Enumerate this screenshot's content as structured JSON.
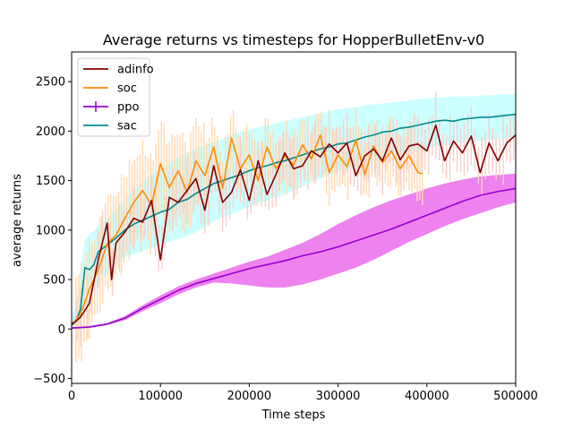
{
  "chart_data": {
    "type": "line",
    "title": "Average returns vs timesteps for HopperBulletEnv-v0",
    "xlabel": "Time steps",
    "ylabel": "average returns",
    "xlim": [
      0,
      500000
    ],
    "ylim": [
      -550,
      2800
    ],
    "xticks": [
      0,
      100000,
      200000,
      300000,
      400000,
      500000
    ],
    "xtick_labels": [
      "0",
      "100000",
      "200000",
      "300000",
      "400000",
      "500000"
    ],
    "yticks": [
      -500,
      0,
      500,
      1000,
      1500,
      2000,
      2500
    ],
    "ytick_labels": [
      "−500",
      "0",
      "500",
      "1000",
      "1500",
      "2000",
      "2500"
    ],
    "grid": false,
    "legend_position": "top-left",
    "series": [
      {
        "name": "adinfo",
        "color": "#800000",
        "x": [
          0,
          10000,
          20000,
          30000,
          40000,
          45000,
          50000,
          60000,
          70000,
          80000,
          90000,
          100000,
          110000,
          120000,
          130000,
          140000,
          150000,
          160000,
          170000,
          180000,
          190000,
          200000,
          210000,
          220000,
          230000,
          240000,
          250000,
          260000,
          270000,
          280000,
          290000,
          300000,
          310000,
          320000,
          330000,
          340000,
          350000,
          360000,
          370000,
          380000,
          390000,
          400000,
          410000,
          420000,
          430000,
          440000,
          450000,
          460000,
          470000,
          480000,
          490000,
          500000
        ],
        "values": [
          40,
          120,
          260,
          700,
          1070,
          500,
          870,
          980,
          1120,
          1080,
          1300,
          700,
          1330,
          1280,
          1400,
          1520,
          1200,
          1650,
          1280,
          1380,
          1610,
          1300,
          1700,
          1360,
          1560,
          1780,
          1620,
          1650,
          1800,
          1740,
          1870,
          1780,
          1880,
          1550,
          1750,
          1820,
          1700,
          1930,
          1710,
          1850,
          1870,
          1800,
          2060,
          1700,
          1900,
          1780,
          1950,
          1580,
          1880,
          1700,
          1880,
          1960
        ]
      },
      {
        "name": "soc",
        "color": "#ff8c00",
        "x": [
          0,
          10000,
          20000,
          30000,
          40000,
          50000,
          60000,
          70000,
          80000,
          90000,
          100000,
          110000,
          120000,
          130000,
          140000,
          150000,
          160000,
          170000,
          180000,
          190000,
          200000,
          210000,
          220000,
          230000,
          240000,
          250000,
          260000,
          270000,
          280000,
          290000,
          300000,
          310000,
          320000,
          330000,
          340000,
          350000,
          360000,
          370000,
          380000,
          390000,
          395000
        ],
        "values": [
          40,
          150,
          400,
          600,
          860,
          950,
          1120,
          1280,
          1400,
          1250,
          1670,
          1430,
          1600,
          1380,
          1700,
          1550,
          1840,
          1420,
          1930,
          1620,
          1760,
          1500,
          1840,
          1620,
          1750,
          1660,
          1860,
          1720,
          1960,
          1580,
          1760,
          1640,
          1910,
          1560,
          1850,
          1680,
          1800,
          1620,
          1750,
          1580,
          1570
        ]
      },
      {
        "name": "ppo",
        "color": "#9400d3",
        "x": [
          0,
          20000,
          40000,
          60000,
          80000,
          100000,
          120000,
          140000,
          160000,
          180000,
          200000,
          220000,
          240000,
          260000,
          280000,
          300000,
          320000,
          340000,
          360000,
          380000,
          400000,
          420000,
          440000,
          460000,
          480000,
          500000
        ],
        "values": [
          10,
          20,
          50,
          110,
          210,
          300,
          390,
          460,
          510,
          560,
          610,
          650,
          690,
          740,
          780,
          830,
          890,
          950,
          1010,
          1080,
          1150,
          1220,
          1290,
          1350,
          1390,
          1420
        ],
        "band_upper": [
          20,
          30,
          60,
          130,
          240,
          340,
          430,
          500,
          560,
          620,
          680,
          730,
          800,
          870,
          960,
          1060,
          1150,
          1230,
          1300,
          1360,
          1420,
          1470,
          1510,
          1540,
          1560,
          1570
        ],
        "band_lower": [
          0,
          10,
          40,
          90,
          180,
          260,
          350,
          420,
          470,
          460,
          440,
          420,
          420,
          450,
          500,
          560,
          620,
          700,
          790,
          880,
          960,
          1040,
          1110,
          1170,
          1230,
          1280
        ]
      },
      {
        "name": "sac",
        "color": "#008b8b",
        "x": [
          0,
          5000,
          10000,
          15000,
          20000,
          25000,
          30000,
          40000,
          50000,
          60000,
          70000,
          80000,
          90000,
          100000,
          110000,
          120000,
          130000,
          140000,
          150000,
          160000,
          170000,
          180000,
          190000,
          200000,
          210000,
          220000,
          230000,
          240000,
          250000,
          260000,
          270000,
          280000,
          290000,
          300000,
          310000,
          320000,
          330000,
          340000,
          350000,
          360000,
          370000,
          380000,
          390000,
          400000,
          410000,
          420000,
          430000,
          440000,
          450000,
          460000,
          470000,
          480000,
          490000,
          500000
        ],
        "values": [
          60,
          80,
          200,
          620,
          600,
          650,
          780,
          850,
          920,
          1000,
          1060,
          1100,
          1140,
          1180,
          1210,
          1280,
          1310,
          1370,
          1420,
          1470,
          1500,
          1530,
          1560,
          1600,
          1630,
          1650,
          1680,
          1700,
          1730,
          1760,
          1790,
          1820,
          1840,
          1870,
          1880,
          1910,
          1940,
          1960,
          1990,
          2000,
          2030,
          2040,
          2060,
          2080,
          2100,
          2110,
          2100,
          2120,
          2130,
          2140,
          2140,
          2150,
          2160,
          2170
        ],
        "band_upper": [
          100,
          300,
          600,
          900,
          960,
          990,
          1040,
          1120,
          1200,
          1300,
          1400,
          1480,
          1560,
          1620,
          1680,
          1730,
          1780,
          1820,
          1860,
          1890,
          1920,
          1960,
          1990,
          2010,
          2040,
          2060,
          2080,
          2100,
          2120,
          2140,
          2160,
          2180,
          2200,
          2220,
          2230,
          2240,
          2260,
          2270,
          2280,
          2290,
          2300,
          2310,
          2320,
          2330,
          2340,
          2340,
          2350,
          2350,
          2350,
          2360,
          2360,
          2370,
          2370,
          2370
        ],
        "band_lower": [
          20,
          50,
          100,
          320,
          350,
          380,
          450,
          560,
          660,
          720,
          760,
          790,
          820,
          850,
          880,
          910,
          940,
          980,
          1030,
          1090,
          1130,
          1160,
          1200,
          1240,
          1270,
          1300,
          1330,
          1360,
          1400,
          1440,
          1480,
          1520,
          1550,
          1590,
          1610,
          1640,
          1670,
          1700,
          1730,
          1750,
          1770,
          1790,
          1810,
          1830,
          1850,
          1860,
          1870,
          1880,
          1890,
          1900,
          1910,
          1920,
          1930,
          1940
        ]
      }
    ],
    "band_colors": {
      "sac": "#ccffff",
      "ppo": "#ee82ee",
      "soc_errorbars": "#ffdab0",
      "adinfo_errorbars": "#f7d0cc"
    }
  }
}
